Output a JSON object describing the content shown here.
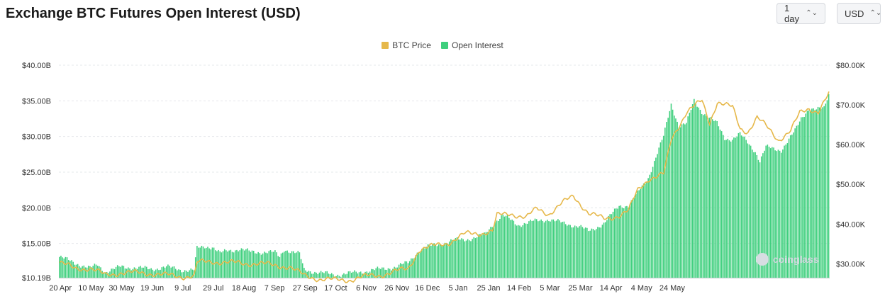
{
  "header": {
    "title": "Exchange BTC Futures Open Interest (USD)",
    "range_select": "1 day",
    "currency_select": "USD"
  },
  "watermark": "coinglass",
  "colors": {
    "price": "#e6b84a",
    "open_interest": "#3ecf7d",
    "grid": "#e6e8eb"
  },
  "chart_data": {
    "type": "bar",
    "legend_position": "top-center",
    "series": [
      {
        "name": "BTC Price",
        "type": "line",
        "axis": "right"
      },
      {
        "name": "Open Interest",
        "type": "bar",
        "axis": "left"
      }
    ],
    "x_labels": [
      "20 Apr",
      "10 May",
      "30 May",
      "19 Jun",
      "9 Jul",
      "29 Jul",
      "18 Aug",
      "7 Sep",
      "27 Sep",
      "17 Oct",
      "6 Nov",
      "26 Nov",
      "16 Dec",
      "5 Jan",
      "25 Jan",
      "14 Feb",
      "5 Mar",
      "25 Mar",
      "14 Apr",
      "4 May",
      "24 May"
    ],
    "left_ticks": [
      "$10.19B",
      "$15.00B",
      "$20.00B",
      "$25.00B",
      "$30.00B",
      "$35.00B",
      "$40.00B"
    ],
    "right_ticks": [
      "$30.00K",
      "$40.00K",
      "$50.00K",
      "$60.00K",
      "$70.00K",
      "$80.00K"
    ],
    "left_ylim": [
      10.19,
      40
    ],
    "right_ylim": [
      26.5,
      80
    ],
    "open_interest_billion_usd": [
      [
        0,
        13.1
      ],
      [
        10,
        12.3
      ],
      [
        20,
        11.5
      ],
      [
        25,
        12.0
      ],
      [
        30,
        11.0
      ],
      [
        40,
        11.7
      ],
      [
        50,
        11.6
      ],
      [
        60,
        11.4
      ],
      [
        70,
        11.7
      ],
      [
        80,
        11.3
      ],
      [
        88,
        11.2
      ],
      [
        90,
        14.3
      ],
      [
        95,
        14.6
      ],
      [
        100,
        14.5
      ],
      [
        105,
        13.6
      ],
      [
        110,
        14.0
      ],
      [
        118,
        14.2
      ],
      [
        125,
        13.8
      ],
      [
        135,
        13.8
      ],
      [
        141,
        13.7
      ],
      [
        144,
        13.1
      ],
      [
        147,
        14.2
      ],
      [
        157,
        13.5
      ],
      [
        160,
        11.3
      ],
      [
        170,
        10.9
      ],
      [
        180,
        10.6
      ],
      [
        190,
        10.8
      ],
      [
        200,
        11.1
      ],
      [
        210,
        11.4
      ],
      [
        220,
        11.7
      ],
      [
        228,
        12.3
      ],
      [
        235,
        14.0
      ],
      [
        242,
        14.6
      ],
      [
        250,
        15.0
      ],
      [
        260,
        15.5
      ],
      [
        270,
        15.7
      ],
      [
        278,
        16.2
      ],
      [
        285,
        18.1
      ],
      [
        290,
        18.9
      ],
      [
        295,
        18.3
      ],
      [
        300,
        17.6
      ],
      [
        310,
        18.1
      ],
      [
        320,
        18.4
      ],
      [
        330,
        17.8
      ],
      [
        340,
        17.4
      ],
      [
        346,
        16.7
      ],
      [
        356,
        17.8
      ],
      [
        366,
        20.3
      ],
      [
        372,
        20.3
      ],
      [
        378,
        22.0
      ],
      [
        385,
        24.2
      ],
      [
        390,
        27.1
      ],
      [
        395,
        30.0
      ],
      [
        400,
        34.5
      ],
      [
        405,
        31.5
      ],
      [
        410,
        31.8
      ],
      [
        415,
        35.0
      ],
      [
        420,
        33.5
      ],
      [
        425,
        32.6
      ],
      [
        430,
        31.8
      ],
      [
        435,
        29.8
      ],
      [
        440,
        29.6
      ],
      [
        445,
        30.3
      ],
      [
        450,
        29.2
      ],
      [
        455,
        27.9
      ],
      [
        458,
        26.5
      ],
      [
        462,
        28.5
      ],
      [
        467,
        28.3
      ],
      [
        472,
        28.1
      ],
      [
        476,
        29.2
      ],
      [
        481,
        30.8
      ],
      [
        485,
        32.6
      ],
      [
        490,
        33.9
      ],
      [
        495,
        33.7
      ],
      [
        500,
        34.0
      ],
      [
        503,
        36.0
      ]
    ],
    "btc_price_thousand_usd": [
      [
        0,
        30.3
      ],
      [
        10,
        28.8
      ],
      [
        20,
        28.9
      ],
      [
        30,
        27.1
      ],
      [
        40,
        27.8
      ],
      [
        50,
        27.7
      ],
      [
        60,
        27.6
      ],
      [
        70,
        27.1
      ],
      [
        80,
        26.8
      ],
      [
        88,
        26.9
      ],
      [
        90,
        30.3
      ],
      [
        100,
        30.6
      ],
      [
        110,
        30.3
      ],
      [
        120,
        30.1
      ],
      [
        130,
        30.1
      ],
      [
        140,
        29.6
      ],
      [
        150,
        29.3
      ],
      [
        160,
        27.0
      ],
      [
        170,
        26.2
      ],
      [
        180,
        25.9
      ],
      [
        190,
        26.0
      ],
      [
        200,
        26.8
      ],
      [
        210,
        27.2
      ],
      [
        220,
        28.1
      ],
      [
        228,
        28.8
      ],
      [
        235,
        33.5
      ],
      [
        245,
        34.5
      ],
      [
        255,
        35.4
      ],
      [
        265,
        37.5
      ],
      [
        275,
        37.7
      ],
      [
        283,
        38.2
      ],
      [
        286,
        42.1
      ],
      [
        295,
        42.7
      ],
      [
        305,
        41.6
      ],
      [
        312,
        43.9
      ],
      [
        320,
        42.6
      ],
      [
        330,
        45.6
      ],
      [
        336,
        47.1
      ],
      [
        346,
        42.7
      ],
      [
        356,
        41.3
      ],
      [
        366,
        42.2
      ],
      [
        372,
        43.3
      ],
      [
        378,
        48.6
      ],
      [
        385,
        51.4
      ],
      [
        390,
        51.9
      ],
      [
        395,
        52.5
      ],
      [
        400,
        61.4
      ],
      [
        410,
        68.3
      ],
      [
        420,
        71.0
      ],
      [
        425,
        65.5
      ],
      [
        430,
        70.8
      ],
      [
        440,
        69.3
      ],
      [
        445,
        64.0
      ],
      [
        450,
        63.3
      ],
      [
        456,
        66.8
      ],
      [
        462,
        64.6
      ],
      [
        470,
        61.2
      ],
      [
        478,
        63.5
      ],
      [
        484,
        67.9
      ],
      [
        490,
        69.1
      ],
      [
        496,
        68.3
      ],
      [
        503,
        72.7
      ]
    ]
  }
}
